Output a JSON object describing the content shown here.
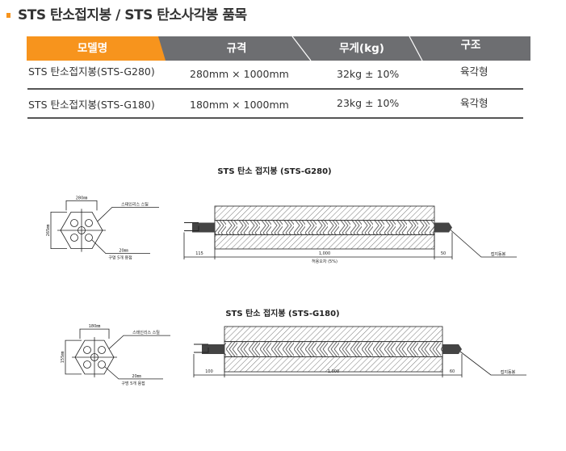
{
  "page_title": "STS 탄소접지봉 / STS 탄소사각봉 품목",
  "colors": {
    "accent": "#f7941d",
    "header_bg": "#6d6e71"
  },
  "table": {
    "headers": [
      "모델명",
      "규격",
      "무게(kg)",
      "구조"
    ],
    "rows": [
      [
        "STS 탄소접지봉(STS-G280)",
        "280mm × 1000mm",
        "32kg  ± 10%",
        "육각형"
      ],
      [
        "STS 탄소접지봉(STS-G180)",
        "180mm × 1000mm",
        "23kg  ± 10%",
        "육각형"
      ]
    ]
  },
  "diagrams": [
    {
      "title": "STS 탄소 접지봉 (STS-G280)",
      "width_label": "280㎜",
      "height_label": "265㎜",
      "material_label": "스테인리스 스틸",
      "hole_size_label": "20㎜",
      "hole_label": "구멍 5개 용접",
      "left_dim": "115",
      "body_dim": "1,000",
      "right_dim": "50",
      "tolerance_label": "허용오차 (5%)",
      "rod_label": "접지동봉"
    },
    {
      "title": "STS 탄소 접지봉 (STS-G180)",
      "width_label": "180㎜",
      "height_label": "155㎜",
      "material_label": "스테인리스 스틸",
      "hole_size_label": "20㎜",
      "hole_label": "구멍 5개 용접",
      "left_dim": "100",
      "body_dim": "1,000",
      "right_dim": "60",
      "rod_label": "접지동봉"
    }
  ]
}
